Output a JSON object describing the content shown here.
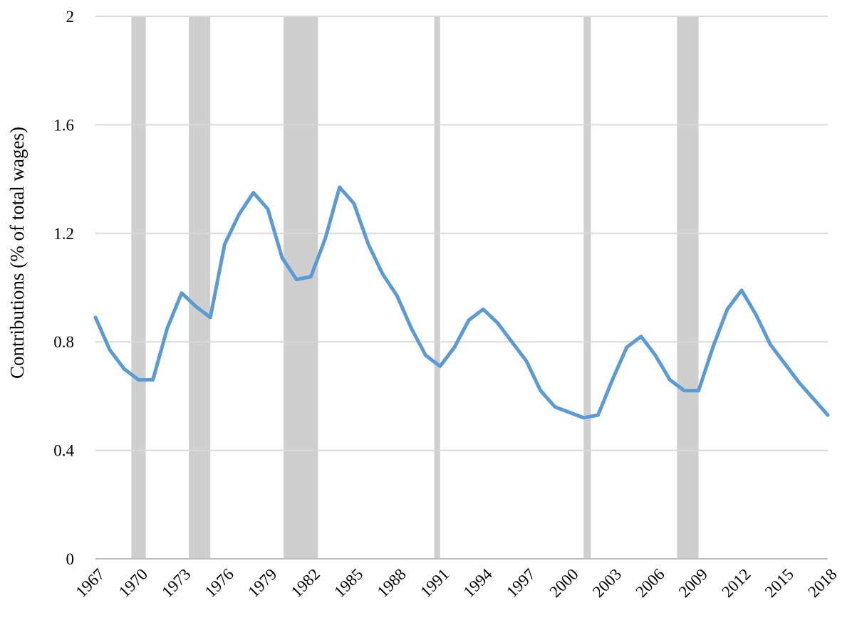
{
  "chart_data": {
    "type": "line",
    "title": "",
    "xlabel": "",
    "ylabel": "Contributions (% of total wages)",
    "xlim": [
      1967,
      2018
    ],
    "ylim": [
      0,
      2
    ],
    "yticks": [
      "0",
      "0.4",
      "0.8",
      "1.2",
      "1.6",
      "2"
    ],
    "xticks": [
      "1967",
      "1970",
      "1973",
      "1976",
      "1979",
      "1982",
      "1985",
      "1988",
      "1991",
      "1994",
      "1997",
      "2000",
      "2003",
      "2006",
      "2009",
      "2012",
      "2015",
      "2018"
    ],
    "grid": true,
    "legend": "none",
    "colors": {
      "line": "#5b9bd5",
      "recession": "#d0cfd0",
      "grid": "#d9d9d9",
      "axis": "#bfbfbf"
    },
    "shaded_periods": [
      {
        "start": 1969.5,
        "end": 1970.5
      },
      {
        "start": 1973.5,
        "end": 1975.0
      },
      {
        "start": 1980.1,
        "end": 1982.5
      },
      {
        "start": 1990.6,
        "end": 1991.0
      },
      {
        "start": 2001.0,
        "end": 2001.5
      },
      {
        "start": 2007.5,
        "end": 2009.0
      }
    ],
    "x": [
      1967,
      1968,
      1969,
      1970,
      1971,
      1972,
      1973,
      1974,
      1975,
      1976,
      1977,
      1978,
      1979,
      1980,
      1981,
      1982,
      1983,
      1984,
      1985,
      1986,
      1987,
      1988,
      1989,
      1990,
      1991,
      1992,
      1993,
      1994,
      1995,
      1996,
      1997,
      1998,
      1999,
      2000,
      2001,
      2002,
      2003,
      2004,
      2005,
      2006,
      2007,
      2008,
      2009,
      2010,
      2011,
      2012,
      2013,
      2014,
      2015,
      2016,
      2017,
      2018
    ],
    "series": [
      {
        "values": [
          0.89,
          0.77,
          0.7,
          0.66,
          0.66,
          0.85,
          0.98,
          0.93,
          0.89,
          1.16,
          1.27,
          1.35,
          1.29,
          1.11,
          1.03,
          1.04,
          1.18,
          1.37,
          1.31,
          1.16,
          1.05,
          0.97,
          0.85,
          0.75,
          0.71,
          0.78,
          0.88,
          0.92,
          0.87,
          0.8,
          0.73,
          0.62,
          0.56,
          0.54,
          0.52,
          0.53,
          0.66,
          0.78,
          0.82,
          0.75,
          0.66,
          0.62,
          0.62,
          0.78,
          0.92,
          0.99,
          0.9,
          0.79,
          0.72,
          0.65,
          0.59,
          0.53
        ]
      }
    ]
  }
}
